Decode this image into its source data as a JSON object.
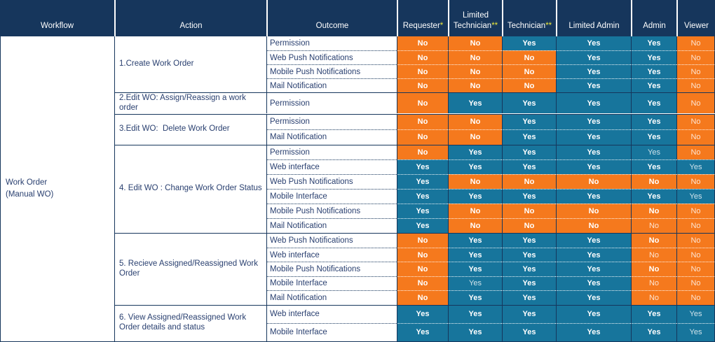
{
  "table": {
    "columns": [
      {
        "id": "workflow",
        "label": "Workflow",
        "mark": ""
      },
      {
        "id": "action",
        "label": "Action",
        "mark": ""
      },
      {
        "id": "outcome",
        "label": "Outcome",
        "mark": ""
      },
      {
        "id": "requester",
        "label": "Requester",
        "mark": "*"
      },
      {
        "id": "limited-technician",
        "label": "Limited Technician",
        "mark": "**"
      },
      {
        "id": "technician",
        "label": "Technician",
        "mark": "**"
      },
      {
        "id": "limited-admin",
        "label": "Limited Admin",
        "mark": ""
      },
      {
        "id": "admin",
        "label": "Admin",
        "mark": ""
      },
      {
        "id": "viewer",
        "label": "Viewer",
        "mark": ""
      }
    ],
    "workflow": {
      "lines": [
        "Work Order",
        "(Manual WO)"
      ]
    },
    "sections": [
      {
        "action": "1.Create Work Order",
        "rows": [
          {
            "outcome": "Permission",
            "values": [
              "No",
              "No",
              "Yes",
              "Yes",
              "Yes",
              "No"
            ],
            "muted": [
              0,
              0,
              0,
              0,
              0,
              1
            ]
          },
          {
            "outcome": "Web Push Notifications",
            "values": [
              "No",
              "No",
              "No",
              "Yes",
              "Yes",
              "No"
            ],
            "muted": [
              0,
              0,
              0,
              0,
              0,
              1
            ]
          },
          {
            "outcome": "Mobile Push Notifications",
            "values": [
              "No",
              "No",
              "No",
              "Yes",
              "Yes",
              "No"
            ],
            "muted": [
              0,
              0,
              0,
              0,
              0,
              1
            ]
          },
          {
            "outcome": "Mail Notification",
            "values": [
              "No",
              "No",
              "No",
              "Yes",
              "Yes",
              "No"
            ],
            "muted": [
              0,
              0,
              0,
              0,
              0,
              1
            ]
          }
        ]
      },
      {
        "action": "2.Edit WO: Assign/Reassign a work order",
        "rows": [
          {
            "outcome": "Permission",
            "values": [
              "No",
              "Yes",
              "Yes",
              "Yes",
              "Yes",
              "No"
            ],
            "muted": [
              0,
              0,
              0,
              0,
              0,
              1
            ]
          }
        ]
      },
      {
        "action": "3.Edit WO:  Delete Work Order",
        "rows": [
          {
            "outcome": "Permission",
            "values": [
              "No",
              "No",
              "Yes",
              "Yes",
              "Yes",
              "No"
            ],
            "muted": [
              0,
              0,
              0,
              0,
              0,
              1
            ]
          },
          {
            "outcome": "Mail Notification",
            "values": [
              "No",
              "No",
              "Yes",
              "Yes",
              "Yes",
              "No"
            ],
            "muted": [
              0,
              0,
              0,
              0,
              0,
              1
            ]
          }
        ]
      },
      {
        "action": "4. Edit WO : Change Work Order Status",
        "rows": [
          {
            "outcome": "Permission",
            "values": [
              "No",
              "Yes",
              "Yes",
              "Yes",
              "Yes",
              "No"
            ],
            "muted": [
              0,
              0,
              0,
              0,
              1,
              1
            ]
          },
          {
            "outcome": "Web interface",
            "values": [
              "Yes",
              "Yes",
              "Yes",
              "Yes",
              "Yes",
              "Yes"
            ],
            "muted": [
              0,
              0,
              0,
              0,
              0,
              1
            ]
          },
          {
            "outcome": "Web Push Notifications",
            "values": [
              "Yes",
              "No",
              "No",
              "No",
              "No",
              "No"
            ],
            "muted": [
              0,
              0,
              0,
              0,
              0,
              1
            ]
          },
          {
            "outcome": "Mobile Interface",
            "values": [
              "Yes",
              "Yes",
              "Yes",
              "Yes",
              "Yes",
              "Yes"
            ],
            "muted": [
              0,
              0,
              0,
              0,
              0,
              1
            ]
          },
          {
            "outcome": "Mobile Push Notifications",
            "values": [
              "Yes",
              "No",
              "No",
              "No",
              "No",
              "No"
            ],
            "muted": [
              0,
              0,
              0,
              0,
              0,
              1
            ]
          },
          {
            "outcome": "Mail Notification",
            "values": [
              "Yes",
              "No",
              "No",
              "No",
              "No",
              "No"
            ],
            "muted": [
              0,
              0,
              0,
              0,
              1,
              1
            ]
          }
        ]
      },
      {
        "action": "5. Recieve Assigned/Reassigned Work Order",
        "rows": [
          {
            "outcome": "Web Push Notifications",
            "values": [
              "No",
              "Yes",
              "Yes",
              "Yes",
              "No",
              "No"
            ],
            "muted": [
              0,
              0,
              0,
              0,
              0,
              1
            ]
          },
          {
            "outcome": "Web interface",
            "values": [
              "No",
              "Yes",
              "Yes",
              "Yes",
              "No",
              "No"
            ],
            "muted": [
              0,
              0,
              0,
              0,
              1,
              1
            ]
          },
          {
            "outcome": "Mobile Push Notifications",
            "values": [
              "No",
              "Yes",
              "Yes",
              "Yes",
              "No",
              "No"
            ],
            "muted": [
              0,
              0,
              0,
              0,
              0,
              1
            ]
          },
          {
            "outcome": "Mobile Interface",
            "values": [
              "No",
              "Yes",
              "Yes",
              "Yes",
              "No",
              "No"
            ],
            "muted": [
              0,
              1,
              0,
              0,
              1,
              1
            ]
          },
          {
            "outcome": "Mail Notification",
            "values": [
              "No",
              "Yes",
              "Yes",
              "Yes",
              "No",
              "No"
            ],
            "muted": [
              0,
              0,
              0,
              0,
              1,
              1
            ]
          }
        ]
      },
      {
        "action": "6. View Assigned/Reassigned Work Order details and status",
        "rows": [
          {
            "outcome": "Web interface",
            "values": [
              "Yes",
              "Yes",
              "Yes",
              "Yes",
              "Yes",
              "Yes"
            ],
            "muted": [
              0,
              0,
              0,
              0,
              0,
              1
            ]
          },
          {
            "outcome": "Mobile Interface",
            "values": [
              "Yes",
              "Yes",
              "Yes",
              "Yes",
              "Yes",
              "Yes"
            ],
            "muted": [
              0,
              0,
              0,
              0,
              0,
              1
            ]
          }
        ]
      }
    ]
  },
  "colors": {
    "header_bg": "#16365C",
    "yes_cell_bg": "#17759C",
    "no_cell_bg": "#F5791D",
    "cell_text": "#FFFFFF",
    "label_text": "#2A4070",
    "footnote_marker": "#E9E63B"
  }
}
